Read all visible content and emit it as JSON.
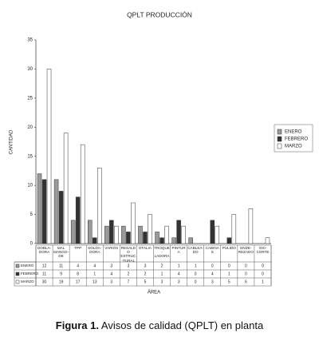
{
  "chart_data": {
    "type": "bar",
    "title": "QPLT PRODUCCIÓN",
    "y_label": "CANTIDAD",
    "x_label": "ÁREA",
    "categories": [
      "DOBLA-DORA",
      "MAL MANGO-DE",
      "TPP",
      "SOLDA-DORA",
      "VARIOS",
      "RESALDO ESTRUC-TURAL",
      "DTALIA",
      "TROQUE-LADORA",
      "PINTURA",
      "CABLEA-DO",
      "CABINAS",
      "PULIDO",
      "ENDE-REZADO",
      "OXI-CORTE"
    ],
    "series": [
      {
        "name": "ENERO",
        "color": "#9a9a9a",
        "values": [
          12,
          11,
          4,
          4,
          3,
          3,
          3,
          2,
          1,
          1,
          0,
          0,
          0,
          0
        ]
      },
      {
        "name": "FEBRERO",
        "color": "#333333",
        "values": [
          11,
          9,
          8,
          1,
          4,
          2,
          2,
          1,
          4,
          0,
          4,
          1,
          0,
          0
        ]
      },
      {
        "name": "MARZO",
        "color": "#ffffff",
        "values": [
          30,
          19,
          17,
          13,
          3,
          7,
          5,
          3,
          3,
          0,
          3,
          5,
          6,
          1
        ]
      }
    ],
    "ylim": [
      0,
      35
    ],
    "yticks": [
      0,
      5,
      10,
      15,
      20,
      25,
      30,
      35
    ],
    "grid": false,
    "legend": "right",
    "data_table": true
  },
  "caption": {
    "label": "Figura 1.",
    "text": "Avisos de calidad (QPLT) en planta"
  }
}
